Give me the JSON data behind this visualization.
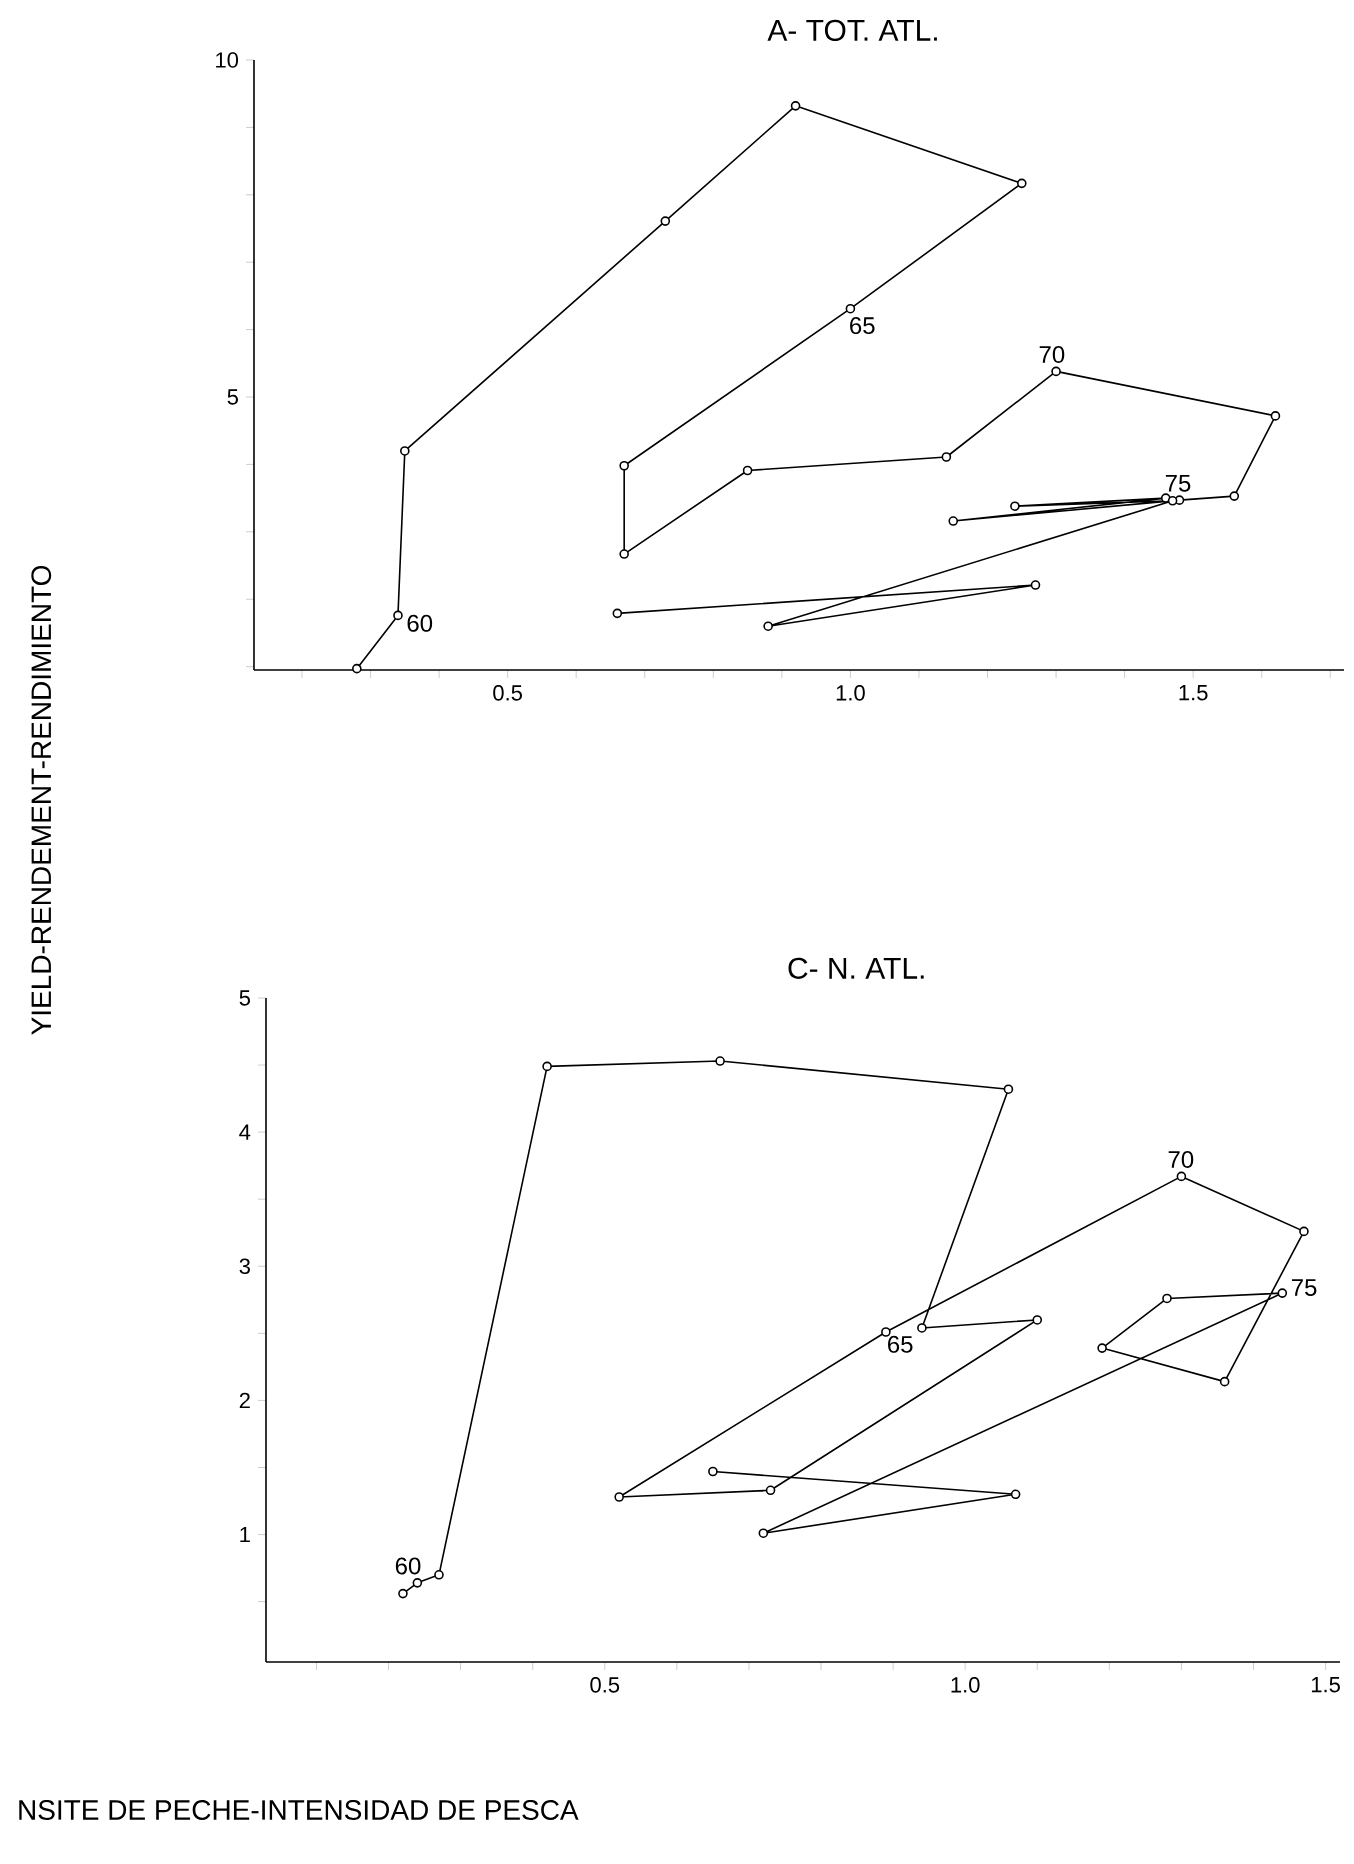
{
  "chart_data": [
    {
      "type": "line",
      "title": "A- TOT. ATL.",
      "ylabel": "YIELD-RENDEMENT-RENDIMIENTO",
      "marker": "circle",
      "series": [
        {
          "color": "#000000",
          "x": [
            0.28,
            0.34,
            0.35,
            0.73,
            0.92,
            1.25,
            1.0,
            0.67,
            0.67,
            0.85,
            1.14,
            1.3,
            1.62,
            1.56,
            1.48,
            1.15,
            1.46,
            1.24,
            1.47,
            0.88,
            1.27,
            0.66
          ],
          "values": [
            0.97,
            1.76,
            4.2,
            7.61,
            9.32,
            8.17,
            6.31,
            3.98,
            2.67,
            3.91,
            4.11,
            5.38,
            4.72,
            3.53,
            3.47,
            3.16,
            3.5,
            3.38,
            3.46,
            1.6,
            2.21,
            1.79
          ]
        }
      ],
      "annotations": [
        {
          "text": "60",
          "x": 0.34,
          "y": 1.76
        },
        {
          "text": "65",
          "x": 1.0,
          "y": 6.31
        },
        {
          "text": "70",
          "x": 1.3,
          "y": 5.38
        },
        {
          "text": "75",
          "x": 1.48,
          "y": 3.47
        }
      ],
      "xlim": [
        0.13,
        1.72
      ],
      "ylim": [
        0.95,
        10
      ],
      "xticks": [
        {
          "value": 0.2,
          "label": null
        },
        {
          "value": 0.3,
          "label": null
        },
        {
          "value": 0.4,
          "label": null
        },
        {
          "value": 0.5,
          "label": "0.5"
        },
        {
          "value": 0.6,
          "label": null
        },
        {
          "value": 0.7,
          "label": null
        },
        {
          "value": 0.8,
          "label": null
        },
        {
          "value": 0.9,
          "label": null
        },
        {
          "value": 1.0,
          "label": "1.0"
        },
        {
          "value": 1.1,
          "label": null
        },
        {
          "value": 1.2,
          "label": null
        },
        {
          "value": 1.3,
          "label": null
        },
        {
          "value": 1.4,
          "label": null
        },
        {
          "value": 1.5,
          "label": "1.5"
        },
        {
          "value": 1.6,
          "label": null
        },
        {
          "value": 1.7,
          "label": null
        }
      ],
      "yticks": [
        {
          "value": 1,
          "label": null
        },
        {
          "value": 2,
          "label": null
        },
        {
          "value": 3,
          "label": null
        },
        {
          "value": 4,
          "label": null
        },
        5,
        {
          "value": 6,
          "label": null
        },
        {
          "value": 7,
          "label": null
        },
        {
          "value": 8,
          "label": null
        },
        {
          "value": 9,
          "label": null
        },
        10
      ]
    },
    {
      "type": "line",
      "title": "C- N. ATL.",
      "xlabel": "NSITE DE PECHE-INTENSIDAD DE PESCA",
      "marker": "circle",
      "series": [
        {
          "color": "#000000",
          "x": [
            0.22,
            0.24,
            0.27,
            0.42,
            0.66,
            1.06,
            0.94,
            1.1,
            0.73,
            0.52,
            0.89,
            1.3,
            1.47,
            1.36,
            1.19,
            1.28,
            1.44,
            0.72,
            1.07,
            0.65
          ],
          "values": [
            0.56,
            0.64,
            0.7,
            4.49,
            4.53,
            4.32,
            2.54,
            2.6,
            1.33,
            1.28,
            2.51,
            3.67,
            3.26,
            2.14,
            2.39,
            2.76,
            2.8,
            1.01,
            1.3,
            1.47
          ]
        }
      ],
      "annotations": [
        {
          "text": "60",
          "x": 0.24,
          "y": 0.64
        },
        {
          "text": "65",
          "x": 0.94,
          "y": 2.54
        },
        {
          "text": "70",
          "x": 1.3,
          "y": 3.67
        },
        {
          "text": "75",
          "x": 1.44,
          "y": 2.8
        }
      ],
      "xlim": [
        0.03,
        1.52
      ],
      "ylim": [
        0.05,
        5
      ],
      "xticks": [
        {
          "value": 0.1,
          "label": null
        },
        {
          "value": 0.2,
          "label": null
        },
        {
          "value": 0.3,
          "label": null
        },
        {
          "value": 0.4,
          "label": null
        },
        {
          "value": 0.5,
          "label": "0.5"
        },
        {
          "value": 0.6,
          "label": null
        },
        {
          "value": 0.7,
          "label": null
        },
        {
          "value": 0.8,
          "label": null
        },
        {
          "value": 0.9,
          "label": null
        },
        {
          "value": 1.0,
          "label": "1.0"
        },
        {
          "value": 1.1,
          "label": null
        },
        {
          "value": 1.2,
          "label": null
        },
        {
          "value": 1.3,
          "label": null
        },
        {
          "value": 1.4,
          "label": null
        },
        {
          "value": 1.5,
          "label": "1.5"
        }
      ],
      "yticks": [
        {
          "value": 0.5,
          "label": null
        },
        1,
        {
          "value": 1.5,
          "label": null
        },
        2,
        {
          "value": 2.5,
          "label": null
        },
        3,
        {
          "value": 3.5,
          "label": null
        },
        4,
        {
          "value": 4.5,
          "label": null
        },
        5
      ]
    }
  ]
}
